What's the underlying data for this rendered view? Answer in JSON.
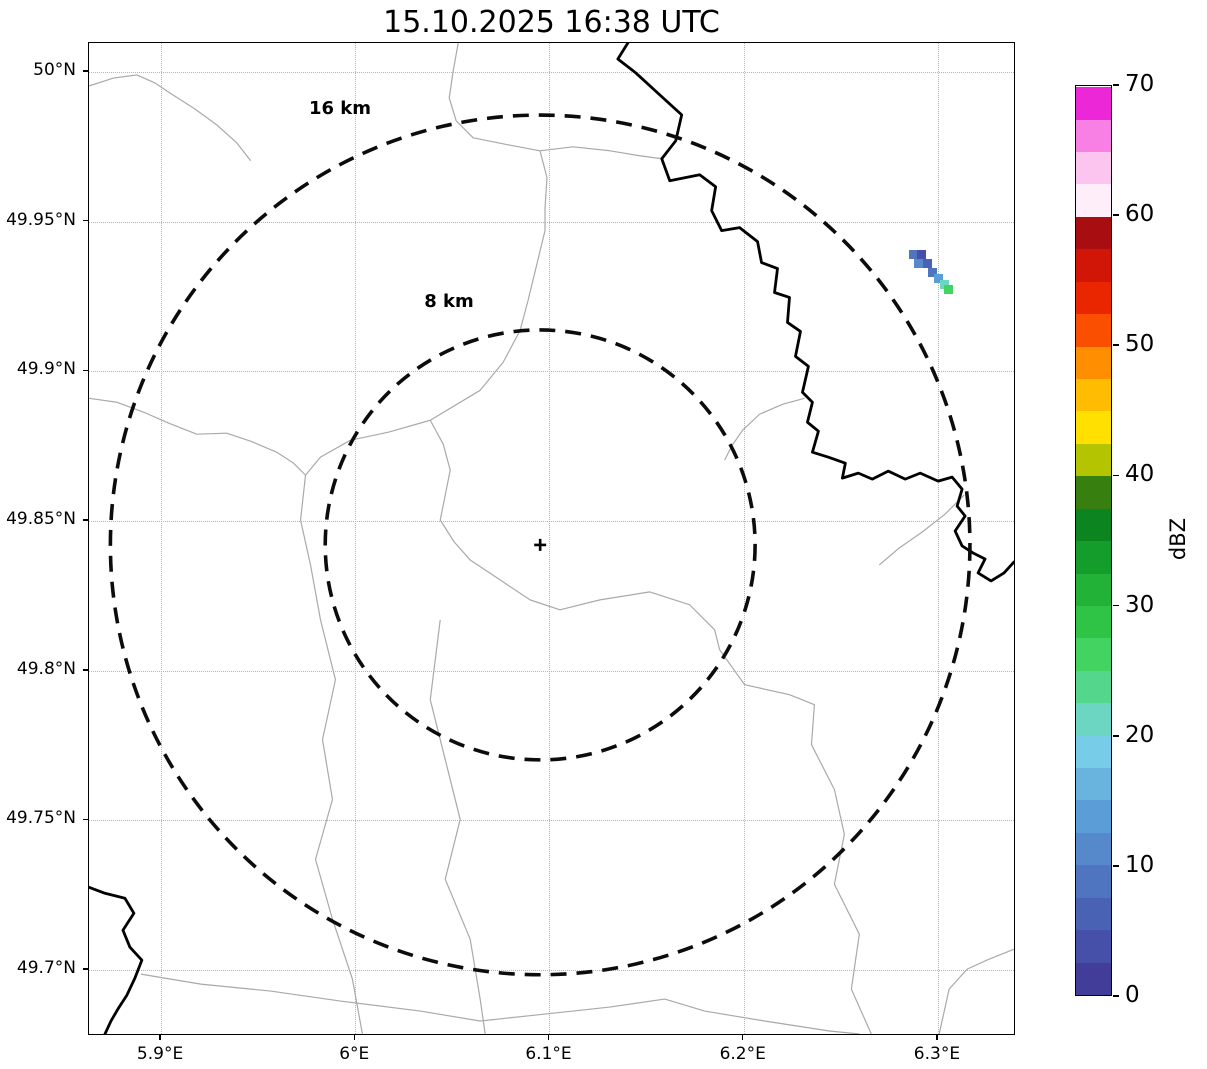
{
  "title": "15.10.2025 16:38 UTC",
  "chart_data": {
    "type": "heatmap",
    "subtype": "weather-radar-reflectivity-map",
    "title": "15.10.2025 16:38 UTC",
    "x_axis": {
      "unit": "longitude",
      "range": [
        5.8629,
        6.3402
      ],
      "ticks": [
        {
          "value": 5.9,
          "label": "5.9°E"
        },
        {
          "value": 6.0,
          "label": "6°E"
        },
        {
          "value": 6.1,
          "label": "6.1°E"
        },
        {
          "value": 6.2,
          "label": "6.2°E"
        },
        {
          "value": 6.3,
          "label": "6.3°E"
        }
      ]
    },
    "y_axis": {
      "unit": "latitude",
      "range": [
        49.678,
        50.0097
      ],
      "ticks": [
        {
          "value": 50.0,
          "label": "50°N"
        },
        {
          "value": 49.95,
          "label": "49.95°N"
        },
        {
          "value": 49.9,
          "label": "49.9°N"
        },
        {
          "value": 49.85,
          "label": "49.85°N"
        },
        {
          "value": 49.8,
          "label": "49.8°N"
        },
        {
          "value": 49.75,
          "label": "49.75°N"
        },
        {
          "value": 49.7,
          "label": "49.7°N"
        }
      ]
    },
    "grid": true,
    "radar_center": {
      "lon": 6.0957,
      "lat": 49.8417,
      "marker": "+"
    },
    "range_rings": [
      {
        "radius_km": 16,
        "label": "16 km"
      },
      {
        "radius_km": 8,
        "label": "8 km"
      }
    ],
    "colorbar": {
      "label": "dBZ",
      "min": 0,
      "max": 70,
      "step": 2.5,
      "ticks": [
        0,
        10,
        20,
        30,
        40,
        50,
        60,
        70
      ],
      "colors": [
        "#413d99",
        "#4650a8",
        "#4a62b4",
        "#4f75c1",
        "#5589cc",
        "#5b9dd6",
        "#68b4df",
        "#77cce8",
        "#6cd6c2",
        "#55d68d",
        "#42d360",
        "#30c447",
        "#22b238",
        "#159d2b",
        "#0c8520",
        "#37800f",
        "#b5c400",
        "#ffe000",
        "#ffbc00",
        "#ff8f00",
        "#fb4f00",
        "#e92600",
        "#d11507",
        "#a80d11",
        "#fdeefa",
        "#fcc5f0",
        "#f87fe4",
        "#ec27d8"
      ]
    },
    "echo_cells": [
      {
        "lon": 6.2872,
        "lat": 49.9389,
        "dbz": 7.5
      },
      {
        "lon": 6.2918,
        "lat": 49.9389,
        "dbz": 2.5
      },
      {
        "lon": 6.2898,
        "lat": 49.9362,
        "dbz": 10
      },
      {
        "lon": 6.2944,
        "lat": 49.9359,
        "dbz": 5
      },
      {
        "lon": 6.297,
        "lat": 49.9332,
        "dbz": 7.5
      },
      {
        "lon": 6.3001,
        "lat": 49.9309,
        "dbz": 12.5
      },
      {
        "lon": 6.3032,
        "lat": 49.9289,
        "dbz": 20
      },
      {
        "lon": 6.3057,
        "lat": 49.9272,
        "dbz": 25
      }
    ]
  },
  "style": {
    "background": "#ffffff",
    "grid_color": "#b4b4b4",
    "ring_color": "#0c0c0c",
    "boundary_color": "#a9a9a9",
    "water_color": "#000000",
    "border_color": "#000000"
  }
}
